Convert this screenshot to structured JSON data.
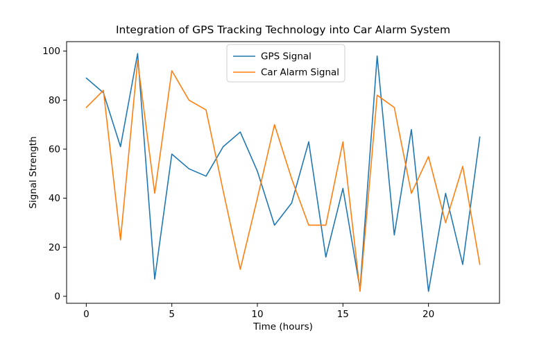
{
  "figure": {
    "background": "#ffffff"
  },
  "chart_data": {
    "type": "line",
    "title": "Integration of GPS Tracking Technology into Car Alarm System",
    "xlabel": "Time (hours)",
    "ylabel": "Signal Strength",
    "x": [
      0,
      1,
      2,
      3,
      4,
      5,
      6,
      7,
      8,
      9,
      10,
      11,
      12,
      13,
      14,
      15,
      16,
      17,
      18,
      19,
      20,
      21,
      22,
      23
    ],
    "series": [
      {
        "name": "GPS Signal",
        "color": "#1f77b4",
        "values": [
          89,
          83,
          61,
          99,
          7,
          58,
          52,
          49,
          61,
          67,
          51,
          29,
          38,
          63,
          16,
          44,
          3,
          98,
          25,
          68,
          2,
          42,
          13,
          65
        ]
      },
      {
        "name": "Car Alarm Signal",
        "color": "#ff7f0e",
        "values": [
          77,
          84,
          23,
          96,
          42,
          92,
          80,
          76,
          43,
          11,
          40,
          70,
          48,
          29,
          29,
          63,
          2,
          82,
          77,
          42,
          57,
          30,
          53,
          13
        ]
      }
    ],
    "xticks": [
      0,
      5,
      10,
      15,
      20
    ],
    "yticks": [
      0,
      20,
      40,
      60,
      80,
      100
    ],
    "xlim": [
      -1.15,
      24.15
    ],
    "ylim": [
      -2.85,
      103.85
    ],
    "grid": false,
    "legend": {
      "position": "upper center-left",
      "entries": [
        "GPS Signal",
        "Car Alarm Signal"
      ],
      "border_color": "#cccccc"
    }
  }
}
